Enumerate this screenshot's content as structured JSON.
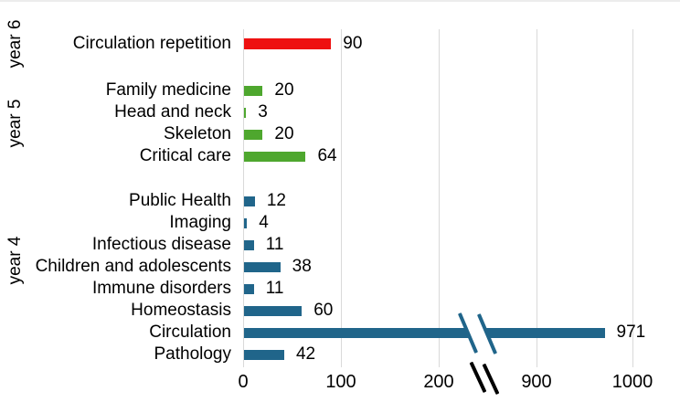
{
  "chart_data": {
    "type": "bar",
    "orientation": "horizontal",
    "title": "",
    "xlabel": "",
    "ylabel": "",
    "x_axis": {
      "ticks": [
        0,
        100,
        200,
        900,
        1000
      ],
      "break_after": 200,
      "break_resume": 900,
      "grid": true
    },
    "groups": [
      {
        "label": "year 6",
        "color": "#ee1111",
        "items": [
          {
            "label": "Circulation repetition",
            "value": 90
          }
        ]
      },
      {
        "label": "year 5",
        "color": "#4ea72e",
        "items": [
          {
            "label": "Family medicine",
            "value": 20
          },
          {
            "label": "Head and neck",
            "value": 3
          },
          {
            "label": "Skeleton",
            "value": 20
          },
          {
            "label": "Critical care",
            "value": 64
          }
        ]
      },
      {
        "label": "year 4",
        "color": "#20658a",
        "items": [
          {
            "label": "Public Health",
            "value": 12
          },
          {
            "label": "Imaging",
            "value": 4
          },
          {
            "label": "Infectious disease",
            "value": 11
          },
          {
            "label": "Children and adolescents",
            "value": 38
          },
          {
            "label": "Immune disorders",
            "value": 11
          },
          {
            "label": "Homeostasis",
            "value": 60
          },
          {
            "label": "Circulation",
            "value": 971,
            "broken": true
          },
          {
            "label": "Pathology",
            "value": 42
          }
        ]
      }
    ],
    "colors": {
      "gridline": "#d9d9d9",
      "axis_text": "#000000",
      "axis_break_marks": "#000000"
    }
  }
}
